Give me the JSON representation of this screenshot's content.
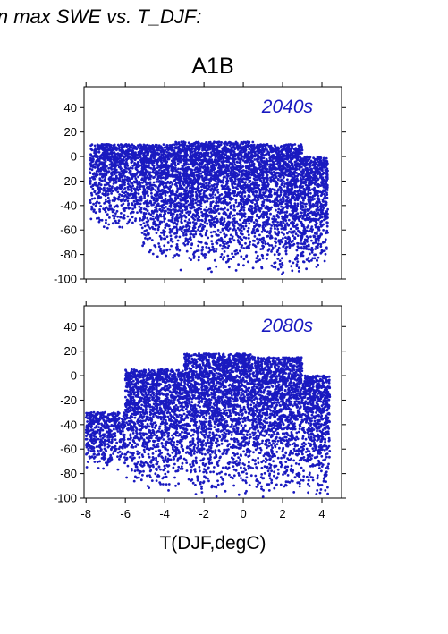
{
  "figure_title": "in max SWE vs. T_DJF:",
  "chart_data": {
    "type": "scatter",
    "scenario_title": "A1B",
    "xlabel": "T(DJF,degC)",
    "ylabel": "",
    "xlim": [
      -8.1,
      5.0
    ],
    "ylim": [
      -100,
      57
    ],
    "xticks": [
      -8,
      -6,
      -4,
      -2,
      0,
      2,
      4
    ],
    "yticks": [
      40,
      20,
      0,
      -20,
      -40,
      -60,
      -80,
      -100
    ],
    "grid": false,
    "marker_color": "#1a1ac0",
    "approximate_points_per_panel": 6000,
    "panels": [
      {
        "label": "2040s",
        "description": "dense cloud; upper edge near 0 to +12, lower edge near -100 for warm T",
        "regions": [
          {
            "x": [
              -7.8,
              -5.2
            ],
            "y": [
              -60,
              10
            ]
          },
          {
            "x": [
              -5.2,
              -3.5
            ],
            "y": [
              -85,
              10
            ]
          },
          {
            "x": [
              -3.5,
              0.5
            ],
            "y": [
              -95,
              12
            ]
          },
          {
            "x": [
              0.5,
              3.0
            ],
            "y": [
              -100,
              10
            ]
          },
          {
            "x": [
              3.0,
              4.3
            ],
            "y": [
              -98,
              0
            ]
          }
        ]
      },
      {
        "label": "2080s",
        "description": "shifted downward; upper edge near +18, lower edge near -100 across most T",
        "regions": [
          {
            "x": [
              -8.0,
              -6.0
            ],
            "y": [
              -80,
              -30
            ]
          },
          {
            "x": [
              -6.0,
              -3.0
            ],
            "y": [
              -95,
              5
            ]
          },
          {
            "x": [
              -3.0,
              0.5
            ],
            "y": [
              -100,
              18
            ]
          },
          {
            "x": [
              0.5,
              3.0
            ],
            "y": [
              -100,
              15
            ]
          },
          {
            "x": [
              3.0,
              4.4
            ],
            "y": [
              -100,
              0
            ]
          }
        ]
      }
    ]
  }
}
